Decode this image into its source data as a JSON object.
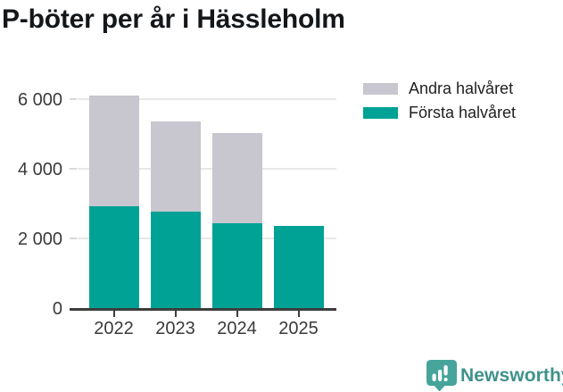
{
  "title": "P-böter per år i Hässleholm",
  "legend": {
    "items": [
      {
        "label": "Andra halvåret",
        "color": "#c8c6ce"
      },
      {
        "label": "Första halvåret",
        "color": "#00a296"
      }
    ]
  },
  "chart_data": {
    "type": "bar",
    "stacked": true,
    "title": "P-böter per år i Hässleholm",
    "categories": [
      "2022",
      "2023",
      "2024",
      "2025"
    ],
    "series": [
      {
        "name": "Första halvåret",
        "color": "#00a296",
        "values": [
          2920,
          2770,
          2440,
          2370
        ]
      },
      {
        "name": "Andra halvåret",
        "color": "#c8c6ce",
        "values": [
          3180,
          2600,
          2590,
          0
        ]
      }
    ],
    "totals": [
      6100,
      5370,
      5030,
      2370
    ],
    "xlabel": "",
    "ylabel": "",
    "ylim": [
      0,
      6300
    ],
    "yticks": [
      0,
      2000,
      4000,
      6000
    ],
    "ytick_labels": [
      "0",
      "2 000",
      "4 000",
      "6 000"
    ],
    "grid": true,
    "legend_position": "top-right"
  },
  "footer": {
    "brand": "Newsworthy",
    "brand_color": "#3f928b",
    "icon_color": "#46a49b",
    "icon": "newsworthy-pin-chart-icon"
  }
}
